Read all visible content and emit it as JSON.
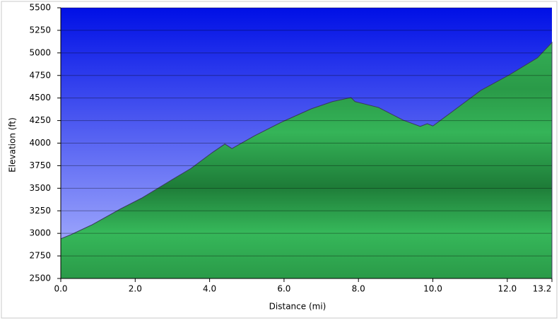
{
  "chart_data": {
    "type": "area",
    "x_label": "Distance (mi)",
    "y_label": "Elevation (ft)",
    "x": [
      0,
      0.27,
      0.84,
      1.6,
      2.17,
      2.93,
      3.5,
      4.07,
      4.41,
      4.6,
      5.2,
      5.97,
      6.73,
      7.3,
      7.8,
      7.91,
      8.54,
      9.2,
      9.66,
      9.85,
      10.0,
      10.72,
      11.29,
      12.05,
      12.81,
      13.2
    ],
    "series": [
      {
        "name": "Elevation",
        "color": "#22a045",
        "values": [
          2940,
          2985,
          3095,
          3270,
          3390,
          3580,
          3720,
          3895,
          3990,
          3940,
          4080,
          4240,
          4380,
          4460,
          4505,
          4460,
          4395,
          4255,
          4185,
          4215,
          4190,
          4410,
          4585,
          4755,
          4945,
          5115
        ]
      }
    ],
    "xlim": [
      0,
      13.2
    ],
    "xticks": [
      {
        "value": 0,
        "label": "0.0"
      },
      {
        "value": 2,
        "label": "2.0"
      },
      {
        "value": 4,
        "label": "4.0"
      },
      {
        "value": 6,
        "label": "6.0"
      },
      {
        "value": 8,
        "label": "8.0"
      },
      {
        "value": 10,
        "label": "10.0"
      },
      {
        "value": 12,
        "label": "12.0"
      },
      13.2
    ],
    "ylim": [
      2500,
      5500
    ],
    "yticks": [
      2500,
      2750,
      3000,
      3250,
      3500,
      3750,
      4000,
      4250,
      4500,
      4750,
      5000,
      5250,
      5500
    ],
    "grid": true
  }
}
